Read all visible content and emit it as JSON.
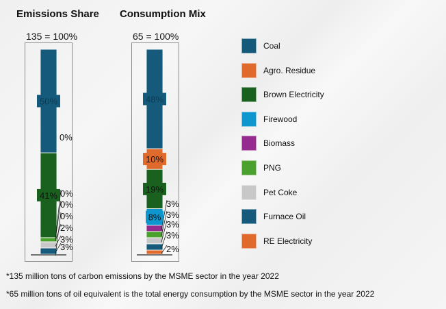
{
  "chart_data": [
    {
      "type": "stacked-bar",
      "title": "Emissions Share",
      "total_label": "135 = 100%",
      "categories": [
        "Coal",
        "Agro. Residue",
        "Brown Electricity",
        "Firewood",
        "Biomass",
        "PNG",
        "Pet Coke",
        "Furnace Oil",
        "RE Electricity"
      ],
      "values": [
        50,
        0,
        41,
        0,
        0,
        2,
        3,
        3,
        0
      ],
      "data_labels": [
        "50%",
        "0%",
        "41%",
        "0%",
        "0%",
        "2%",
        "3%",
        "3%",
        "0%"
      ],
      "unit": "%"
    },
    {
      "type": "stacked-bar",
      "title": "Consumption Mix",
      "total_label": "65 = 100%",
      "categories": [
        "Coal",
        "Agro. Residue",
        "Brown Electricity",
        "Firewood",
        "Biomass",
        "PNG",
        "Pet Coke",
        "Furnace Oil",
        "RE Electricity"
      ],
      "values": [
        48,
        10,
        19,
        8,
        3,
        3,
        3,
        3,
        2
      ],
      "data_labels": [
        "48%",
        "10%",
        "19%",
        "8%",
        "3%",
        "3%",
        "3%",
        "3%",
        "2%"
      ],
      "unit": "%"
    }
  ],
  "legend": {
    "placement": "right",
    "items": [
      {
        "label": "Coal",
        "color": "#155a7a"
      },
      {
        "label": "Agro. Residue",
        "color": "#e06a2c"
      },
      {
        "label": "Brown Electricity",
        "color": "#1a6120"
      },
      {
        "label": "Firewood",
        "color": "#0e96cf"
      },
      {
        "label": "Biomass",
        "color": "#952a8f"
      },
      {
        "label": "PNG",
        "color": "#4aa12e"
      },
      {
        "label": "Pet Coke",
        "color": "#c8c8c8"
      },
      {
        "label": "Furnace Oil",
        "color": "#155a7a"
      },
      {
        "label": "RE Electricity",
        "color": "#e06a2c"
      }
    ]
  },
  "notes": [
    "*135 million tons of carbon emissions by the MSME sector in the year 2022",
    "*65 million tons of oil equivalent is the total energy consumption by the MSME sector in the year 2022"
  ]
}
